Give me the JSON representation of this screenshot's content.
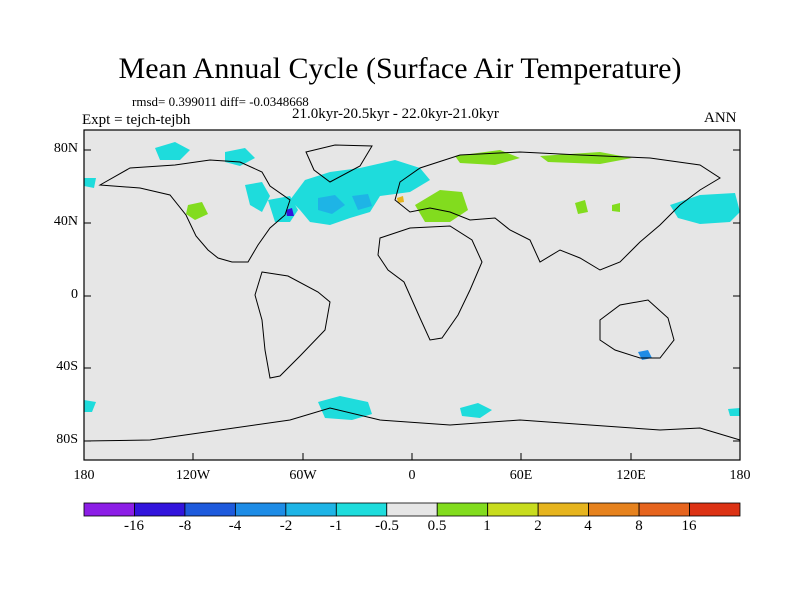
{
  "title": "Mean Annual Cycle (Surface Air Temperature)",
  "stats_text": "rmsd= 0.399011 diff= -0.0348668",
  "period_text": "21.0kyr-20.5kyr - 22.0kyr-21.0kyr",
  "experiment_text": "Expt = tejch-tejbh",
  "season": "ANN",
  "map": {
    "lat_labels": [
      "80N",
      "40N",
      "0",
      "40S",
      "80S"
    ],
    "lon_labels": [
      "180",
      "120W",
      "60W",
      "0",
      "60E",
      "120E",
      "180"
    ],
    "background_color": "#e6e6e6"
  },
  "colorbar": {
    "labels": [
      "-16",
      "-8",
      "-4",
      "-2",
      "-1",
      "-0.5",
      "0.5",
      "1",
      "2",
      "4",
      "8",
      "16"
    ],
    "colors": [
      "#8c1ee6",
      "#3214dc",
      "#1e5adc",
      "#1e8ce6",
      "#1eb4e6",
      "#1edcdc",
      "#e6e6e6",
      "#82dc1e",
      "#c8dc1e",
      "#e6b41e",
      "#e6821e",
      "#e6641e",
      "#dc3214"
    ]
  }
}
